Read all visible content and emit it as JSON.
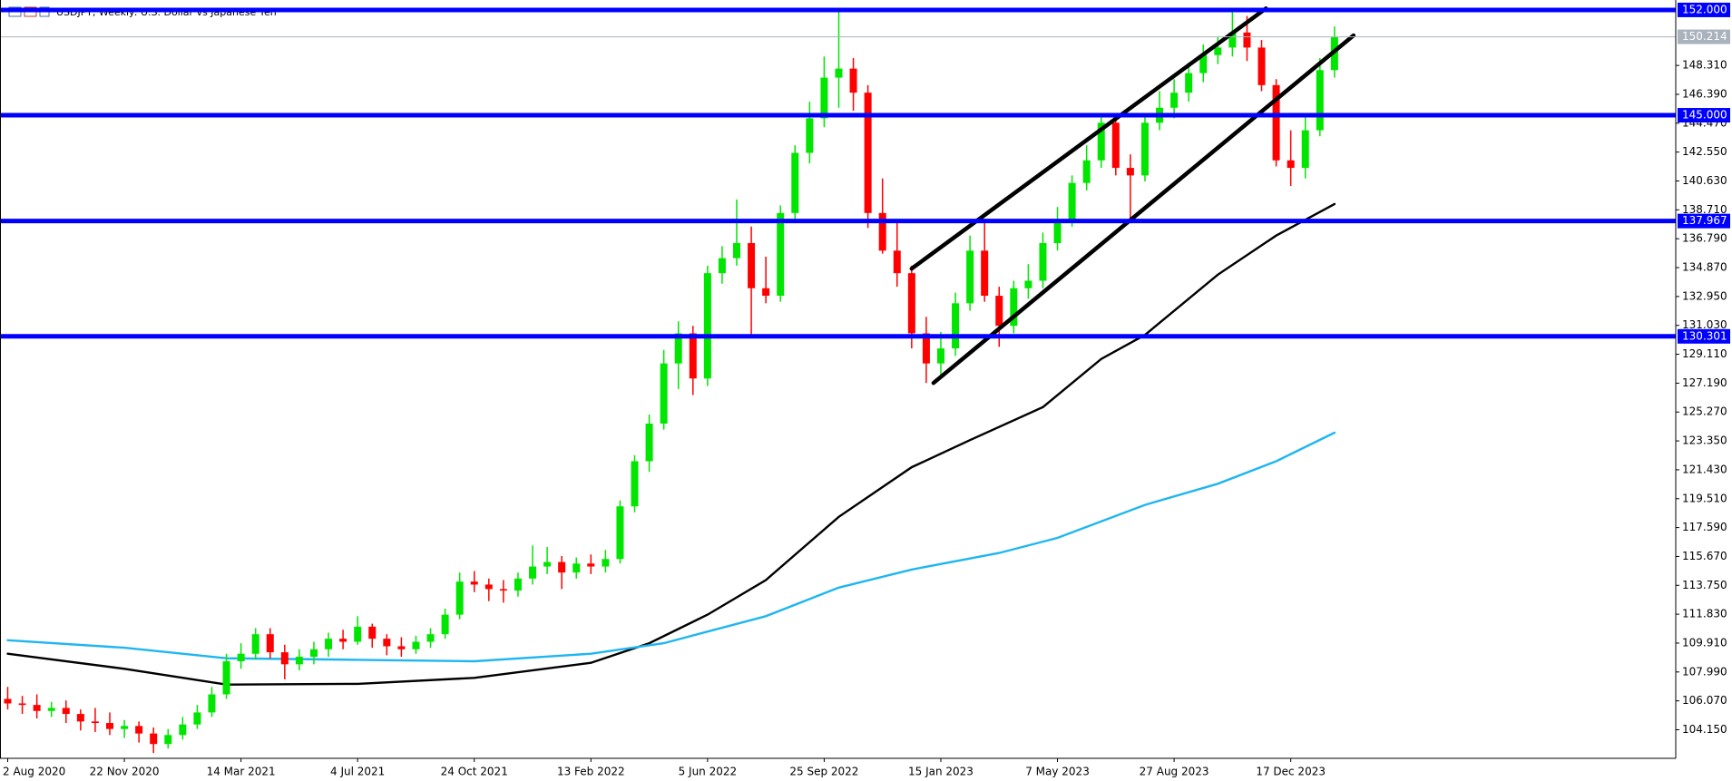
{
  "chart_data": {
    "type": "candlestick",
    "title": "USDJPY, Weekly:  U.S. Dollar vs Japanese Yen",
    "categories": [
      "2 Aug 2020",
      null,
      null,
      null,
      null,
      null,
      null,
      null,
      "22 Nov 2020",
      null,
      null,
      null,
      null,
      null,
      null,
      null,
      "14 Mar 2021",
      null,
      null,
      null,
      null,
      null,
      null,
      null,
      "4 Jul 2021",
      null,
      null,
      null,
      null,
      null,
      null,
      null,
      "24 Oct 2021",
      null,
      null,
      null,
      null,
      null,
      null,
      null,
      "13 Feb 2022",
      null,
      null,
      null,
      null,
      null,
      null,
      null,
      "5 Jun 2022",
      null,
      null,
      null,
      null,
      null,
      null,
      null,
      "25 Sep 2022",
      null,
      null,
      null,
      null,
      null,
      null,
      null,
      "15 Jan 2023",
      null,
      null,
      null,
      null,
      null,
      null,
      null,
      "7 May 2023",
      null,
      null,
      null,
      null,
      null,
      null,
      null,
      "27 Aug 2023",
      null,
      null,
      null,
      null,
      null,
      null,
      null,
      "17 Dec 2023",
      null,
      null,
      null
    ],
    "open": [
      106.2,
      105.9,
      105.8,
      105.4,
      105.6,
      105.2,
      104.7,
      104.6,
      104.2,
      104.4,
      103.9,
      103.2,
      103.8,
      104.5,
      105.3,
      106.5,
      108.7,
      109.2,
      110.5,
      109.3,
      108.5,
      109.0,
      109.5,
      110.2,
      110.0,
      111.0,
      110.2,
      109.7,
      109.5,
      110.0,
      110.5,
      111.8,
      114.0,
      113.8,
      113.5,
      113.4,
      114.2,
      115.0,
      115.3,
      114.6,
      115.2,
      115.0,
      115.5,
      119.0,
      122.0,
      124.5,
      128.5,
      130.5,
      127.5,
      134.5,
      135.5,
      136.5,
      133.5,
      133.0,
      138.5,
      142.5,
      144.8,
      147.5,
      148.1,
      146.5,
      138.5,
      136.0,
      134.5,
      130.5,
      128.5,
      129.5,
      132.5,
      136.0,
      133.0,
      131.0,
      133.5,
      134.0,
      136.5,
      138.0,
      140.5,
      142.0,
      144.5,
      141.5,
      141.0,
      144.5,
      145.5,
      146.5,
      147.8,
      149.0,
      149.5,
      150.5,
      149.5,
      147.0,
      142.0,
      141.5,
      144.0,
      148.0
    ],
    "high": [
      107.0,
      106.4,
      106.5,
      106.0,
      106.1,
      105.5,
      105.6,
      105.3,
      104.8,
      104.7,
      104.3,
      104.2,
      105.0,
      105.8,
      107.0,
      109.2,
      109.9,
      110.9,
      110.9,
      109.8,
      109.5,
      110.0,
      110.6,
      110.8,
      111.7,
      111.2,
      110.5,
      110.3,
      110.4,
      110.9,
      112.2,
      114.6,
      114.7,
      114.2,
      114.1,
      114.6,
      116.4,
      116.3,
      115.7,
      115.6,
      115.8,
      116.1,
      119.4,
      122.4,
      125.1,
      129.4,
      131.3,
      131.0,
      135.0,
      136.3,
      139.4,
      137.6,
      135.6,
      139.0,
      143.0,
      145.9,
      148.9,
      151.9,
      148.8,
      147.0,
      140.8,
      138.0,
      135.0,
      131.6,
      130.6,
      133.2,
      137.0,
      137.9,
      133.6,
      134.0,
      135.1,
      137.2,
      138.9,
      141.0,
      143.0,
      145.1,
      145.0,
      142.4,
      145.0,
      146.6,
      147.4,
      148.5,
      149.7,
      150.2,
      151.9,
      151.6,
      150.0,
      147.4,
      144.0,
      145.0,
      148.8,
      150.9
    ],
    "low": [
      105.5,
      105.2,
      104.9,
      105.0,
      104.6,
      104.1,
      104.0,
      103.8,
      103.6,
      103.3,
      102.6,
      102.9,
      103.5,
      104.2,
      105.0,
      106.2,
      108.2,
      108.8,
      108.9,
      107.5,
      108.1,
      108.5,
      109.0,
      109.5,
      109.8,
      109.6,
      109.1,
      109.0,
      109.2,
      109.6,
      110.2,
      111.5,
      113.3,
      112.7,
      112.6,
      113.0,
      113.8,
      114.5,
      113.5,
      114.2,
      114.5,
      114.6,
      115.2,
      118.6,
      121.3,
      124.1,
      126.8,
      126.4,
      127.0,
      133.8,
      135.0,
      130.4,
      132.5,
      132.6,
      137.9,
      141.8,
      144.2,
      145.5,
      145.3,
      137.5,
      135.8,
      133.6,
      129.5,
      127.2,
      127.6,
      129.0,
      132.0,
      132.6,
      129.6,
      130.5,
      132.8,
      133.5,
      136.0,
      137.6,
      140.0,
      141.5,
      141.0,
      138.0,
      140.6,
      144.0,
      144.8,
      145.9,
      147.2,
      148.4,
      148.9,
      148.6,
      146.6,
      141.6,
      140.3,
      140.8,
      143.6,
      147.5
    ],
    "close": [
      105.9,
      105.8,
      105.4,
      105.6,
      105.2,
      104.7,
      104.6,
      104.2,
      104.4,
      103.9,
      103.2,
      103.8,
      104.5,
      105.3,
      106.5,
      108.7,
      109.2,
      110.5,
      109.3,
      108.5,
      109.0,
      109.5,
      110.2,
      110.0,
      111.0,
      110.2,
      109.7,
      109.5,
      110.0,
      110.5,
      111.8,
      114.0,
      113.8,
      113.5,
      113.4,
      114.2,
      115.0,
      115.3,
      114.6,
      115.2,
      115.0,
      115.5,
      119.0,
      122.0,
      124.5,
      128.5,
      130.5,
      127.5,
      134.5,
      135.5,
      136.5,
      133.5,
      133.0,
      138.5,
      142.5,
      144.8,
      147.5,
      148.1,
      146.5,
      138.5,
      136.0,
      134.5,
      130.5,
      128.5,
      129.5,
      132.5,
      136.0,
      133.0,
      131.0,
      133.5,
      134.0,
      136.5,
      138.0,
      140.5,
      142.0,
      144.5,
      141.5,
      141.0,
      144.5,
      145.5,
      146.5,
      147.8,
      149.0,
      149.5,
      150.5,
      149.5,
      147.0,
      142.0,
      141.5,
      144.0,
      148.0,
      150.2
    ],
    "up_color": "#00e600",
    "down_color": "#ff0000",
    "ylim": [
      102.25,
      152.66
    ],
    "yticks": [
      {
        "value": 104.15,
        "label": "104.150"
      },
      {
        "value": 106.07,
        "label": "106.070"
      },
      {
        "value": 107.99,
        "label": "107.990"
      },
      {
        "value": 109.91,
        "label": "109.910"
      },
      {
        "value": 111.83,
        "label": "111.830"
      },
      {
        "value": 113.75,
        "label": "113.750"
      },
      {
        "value": 115.67,
        "label": "115.670"
      },
      {
        "value": 117.59,
        "label": "117.590"
      },
      {
        "value": 119.51,
        "label": "119.510"
      },
      {
        "value": 121.43,
        "label": "121.430"
      },
      {
        "value": 123.35,
        "label": "123.350"
      },
      {
        "value": 125.27,
        "label": "125.270"
      },
      {
        "value": 127.19,
        "label": "127.190"
      },
      {
        "value": 129.11,
        "label": "129.110"
      },
      {
        "value": 131.03,
        "label": "131.030"
      },
      {
        "value": 132.95,
        "label": "132.950"
      },
      {
        "value": 134.87,
        "label": "134.870"
      },
      {
        "value": 136.79,
        "label": "136.790"
      },
      {
        "value": 138.71,
        "label": "138.710"
      },
      {
        "value": 140.63,
        "label": "140.630"
      },
      {
        "value": 142.55,
        "label": "142.550"
      },
      {
        "value": 144.47,
        "label": "144.470"
      },
      {
        "value": 146.39,
        "label": "146.390"
      },
      {
        "value": 148.31,
        "label": "148.310"
      }
    ],
    "moving_averages": [
      {
        "color": "#000000",
        "x": [
          0,
          8,
          15,
          24,
          32,
          40,
          44,
          48,
          52,
          57,
          62,
          66,
          71,
          75,
          78,
          83,
          87,
          91
        ],
        "values": [
          109.2,
          108.2,
          107.15,
          107.2,
          107.6,
          108.6,
          109.9,
          111.8,
          114.1,
          118.3,
          121.6,
          123.4,
          125.6,
          128.8,
          130.4,
          134.4,
          137.0,
          139.1
        ]
      },
      {
        "color": "#1fb6f0",
        "x": [
          0,
          8,
          15,
          24,
          32,
          40,
          45,
          52,
          57,
          62,
          68,
          72,
          78,
          83,
          87,
          91
        ],
        "values": [
          110.1,
          109.6,
          108.9,
          108.8,
          108.7,
          109.2,
          109.9,
          111.7,
          113.6,
          114.8,
          115.9,
          116.9,
          119.1,
          120.5,
          122.0,
          123.9
        ]
      }
    ],
    "trendlines": [
      {
        "color": "#000000",
        "x": [
          62,
          86.3
        ],
        "values": [
          134.8,
          152.1
        ]
      },
      {
        "color": "#000000",
        "x": [
          63.5,
          92.3
        ],
        "values": [
          127.2,
          150.3
        ]
      }
    ],
    "level_color": "#0000ff",
    "levels": [
      {
        "value": 152.0,
        "label": "152.000"
      },
      {
        "value": 145.0,
        "label": "145.000"
      },
      {
        "value": 137.967,
        "label": "137.967"
      },
      {
        "value": 130.301,
        "label": "130.301"
      }
    ],
    "price_line": {
      "value": 150.214,
      "label": "150.214",
      "color": "#a9b2bd"
    }
  }
}
